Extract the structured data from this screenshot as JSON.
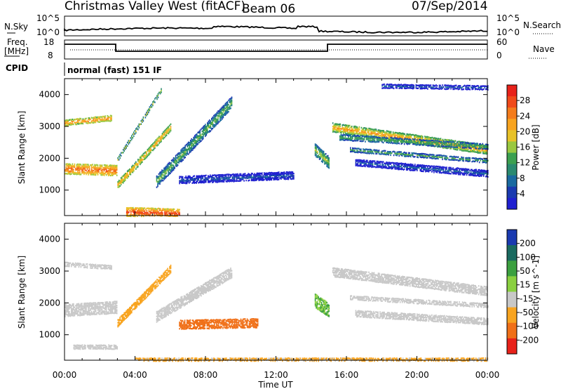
{
  "header": {
    "station": "Christmas Valley West (fitACF)",
    "beam": "Beam 06",
    "date": "07/Sep/2014"
  },
  "strip": {
    "nsky_label": "N.Sky",
    "nsearch_label": "N.Search",
    "noise_left_ticks": [
      "10^5",
      "10^0"
    ],
    "noise_right_ticks": [
      "10^5",
      "10^0"
    ],
    "freq_label_1": "Freq.",
    "freq_label_2": "[MHz]",
    "freq_ticks": [
      "18",
      "8"
    ],
    "nave_label": "Nave",
    "nave_ticks": [
      "60",
      "0"
    ],
    "cpid_label": "CPID",
    "cpid_value": "normal (fast) 151 IF"
  },
  "chart_data": [
    {
      "type": "heatmap",
      "name": "power",
      "ylabel": "Slant Range [km]",
      "xlabel": "Time UT",
      "x_ticks": [
        "00:00",
        "04:00",
        "08:00",
        "12:00",
        "16:00",
        "20:00",
        "00:00"
      ],
      "y_ticks": [
        "1000",
        "2000",
        "3000",
        "4000"
      ],
      "ylim": [
        200,
        4500
      ],
      "xlim": [
        0,
        24
      ],
      "colorbar": {
        "label": "Power [dB]",
        "ticks": [
          "28",
          "24",
          "20",
          "16",
          "12",
          "8",
          "4"
        ],
        "colors": [
          "#e8221a",
          "#f04a1a",
          "#f47c1c",
          "#f8a420",
          "#e8c228",
          "#9ac840",
          "#3ca050",
          "#2a8a70",
          "#1a6aa0",
          "#1a3ab0",
          "#2020d0"
        ]
      },
      "echo_bands": [
        {
          "t_start": 0.0,
          "t_end": 3.0,
          "r_start": 1700,
          "r_end": 1650,
          "width": 350,
          "level": 26
        },
        {
          "t_start": 0.0,
          "t_end": 2.7,
          "r_start": 3150,
          "r_end": 3300,
          "width": 200,
          "level": 24
        },
        {
          "t_start": 3.0,
          "t_end": 6.0,
          "r_start": 1200,
          "r_end": 3000,
          "width": 250,
          "level": 22
        },
        {
          "t_start": 3.0,
          "t_end": 5.5,
          "r_start": 2000,
          "r_end": 4200,
          "width": 150,
          "level": 16
        },
        {
          "t_start": 5.2,
          "t_end": 9.5,
          "r_start": 1300,
          "r_end": 3800,
          "width": 400,
          "level": 14
        },
        {
          "t_start": 6.5,
          "t_end": 13.0,
          "r_start": 1350,
          "r_end": 1500,
          "width": 250,
          "level": 6
        },
        {
          "t_start": 3.5,
          "t_end": 6.5,
          "r_start": 350,
          "r_end": 300,
          "width": 300,
          "level": 28
        },
        {
          "t_start": 15.2,
          "t_end": 24.0,
          "r_start": 3000,
          "r_end": 2300,
          "width": 300,
          "level": 22
        },
        {
          "t_start": 15.6,
          "t_end": 24.0,
          "r_start": 2700,
          "r_end": 2400,
          "width": 200,
          "level": 14
        },
        {
          "t_start": 16.2,
          "t_end": 24.0,
          "r_start": 2300,
          "r_end": 1950,
          "width": 150,
          "level": 12
        },
        {
          "t_start": 16.5,
          "t_end": 24.0,
          "r_start": 1900,
          "r_end": 1550,
          "width": 220,
          "level": 6
        },
        {
          "t_start": 14.2,
          "t_end": 15.0,
          "r_start": 2300,
          "r_end": 1900,
          "width": 400,
          "level": 16
        },
        {
          "t_start": 18.0,
          "t_end": 24.0,
          "r_start": 4300,
          "r_end": 4250,
          "width": 150,
          "level": 5
        }
      ]
    },
    {
      "type": "heatmap",
      "name": "velocity",
      "ylabel": "Slant Range [km]",
      "xlabel": "Time UT",
      "x_ticks": [
        "00:00",
        "04:00",
        "08:00",
        "12:00",
        "16:00",
        "20:00",
        "00:00"
      ],
      "y_ticks": [
        "1000",
        "2000",
        "3000",
        "4000"
      ],
      "ylim": [
        200,
        4500
      ],
      "xlim": [
        0,
        24
      ],
      "colorbar": {
        "label": "Velocity [m s^-1]",
        "ticks": [
          "200",
          "100",
          "50",
          "15",
          "-15",
          "-50",
          "-100",
          "-200"
        ],
        "colors": [
          "#1a3ab0",
          "#1a6a60",
          "#3ca040",
          "#8ad040",
          "#c8c8c8",
          "#f8a420",
          "#f07018",
          "#e8221a"
        ]
      },
      "echo_bands": [
        {
          "t_start": 0.0,
          "t_end": 3.0,
          "r_start": 1800,
          "r_end": 1900,
          "width": 400,
          "vel": 0
        },
        {
          "t_start": 0.0,
          "t_end": 2.7,
          "r_start": 3250,
          "r_end": 3150,
          "width": 150,
          "vel": 0
        },
        {
          "t_start": 3.0,
          "t_end": 6.0,
          "r_start": 1400,
          "r_end": 3100,
          "width": 250,
          "vel": -40
        },
        {
          "t_start": 5.2,
          "t_end": 9.5,
          "r_start": 1600,
          "r_end": 3000,
          "width": 350,
          "vel": 0
        },
        {
          "t_start": 6.5,
          "t_end": 11.0,
          "r_start": 1350,
          "r_end": 1400,
          "width": 300,
          "vel": -60
        },
        {
          "t_start": 14.2,
          "t_end": 15.0,
          "r_start": 2100,
          "r_end": 1800,
          "width": 450,
          "vel": 30
        },
        {
          "t_start": 15.2,
          "t_end": 24.0,
          "r_start": 3000,
          "r_end": 2400,
          "width": 300,
          "vel": 0
        },
        {
          "t_start": 16.2,
          "t_end": 24.0,
          "r_start": 2200,
          "r_end": 1950,
          "width": 150,
          "vel": 0
        },
        {
          "t_start": 16.5,
          "t_end": 24.0,
          "r_start": 1700,
          "r_end": 1450,
          "width": 220,
          "vel": 0
        },
        {
          "t_start": 4.0,
          "t_end": 24.0,
          "r_start": 250,
          "r_end": 250,
          "width": 120,
          "vel": -20
        },
        {
          "t_start": 0.5,
          "t_end": 3.0,
          "r_start": 650,
          "r_end": 650,
          "width": 150,
          "vel": 0
        }
      ]
    }
  ]
}
